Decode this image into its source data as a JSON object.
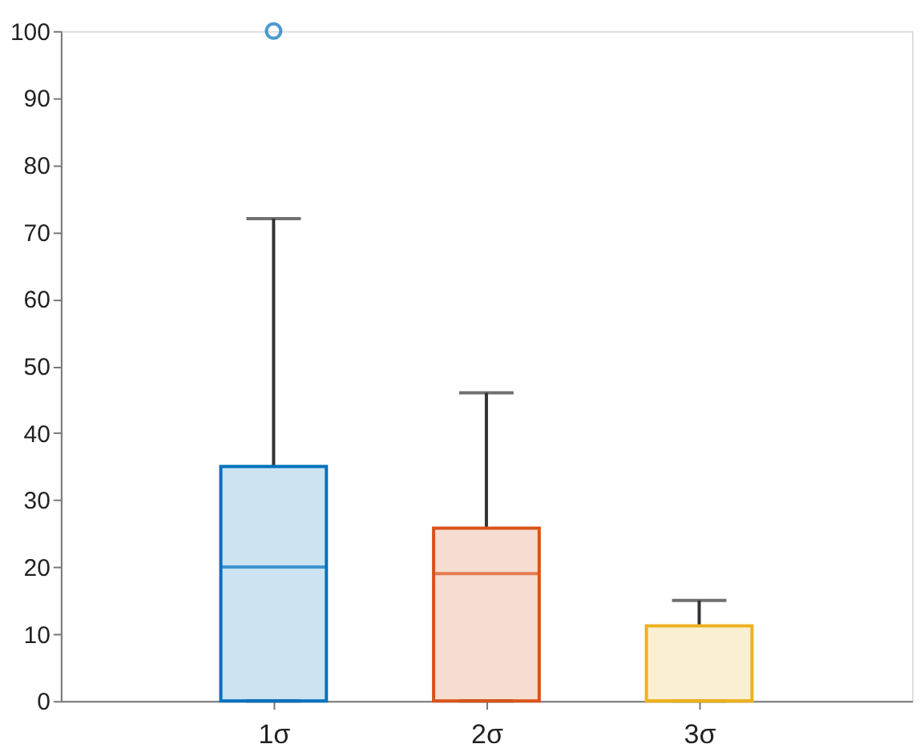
{
  "chart_data": {
    "type": "box",
    "categories": [
      "1σ",
      "2σ",
      "3σ"
    ],
    "boxes": [
      {
        "low": 0,
        "q1": 0,
        "median": 20,
        "q3": 35,
        "high": 72,
        "outliers": [
          100
        ]
      },
      {
        "low": 0,
        "q1": 0,
        "median": 19,
        "q3": 25.8,
        "high": 46
      },
      {
        "low": 0,
        "q1": 0,
        "median": 0,
        "q3": 11.2,
        "high": 15
      }
    ],
    "colors": [
      "#0072bd",
      "#d95319",
      "#edb120"
    ],
    "ylim": [
      0,
      100
    ],
    "yticks": [
      0,
      10,
      20,
      30,
      40,
      50,
      60,
      70,
      80,
      90,
      100
    ],
    "grid": false
  }
}
